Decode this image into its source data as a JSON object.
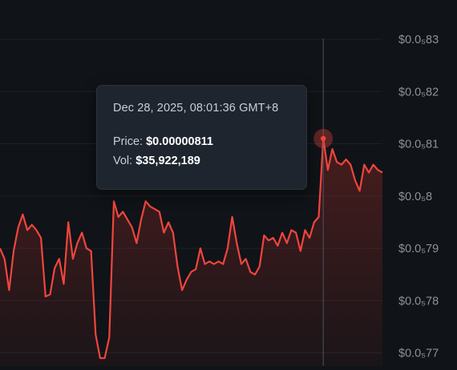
{
  "theme": {
    "background": "#101317",
    "line": "#f0453d",
    "gridline": "#1c2229",
    "axis_text": "#8a929c",
    "tooltip_bg": "#1f252e"
  },
  "chart_data": {
    "type": "area",
    "series": [
      {
        "x_index": [
          0,
          1,
          2,
          3,
          4,
          5,
          6,
          7,
          8,
          9,
          10,
          11,
          12,
          13,
          14,
          15,
          16,
          17,
          18,
          19,
          20,
          21,
          22,
          23,
          24,
          25,
          26,
          27,
          28,
          29,
          30,
          31,
          32,
          33,
          34,
          35,
          36,
          37,
          38,
          39,
          40,
          41,
          42,
          43,
          44,
          45,
          46,
          47,
          48,
          49,
          50,
          51,
          52,
          53,
          54,
          55,
          56,
          57,
          58,
          59,
          60,
          61,
          62,
          63,
          64,
          65,
          66,
          67,
          68,
          69,
          70,
          71,
          72,
          73,
          74,
          75,
          76,
          77,
          78,
          79,
          80,
          81,
          82,
          83,
          84
        ],
        "values_e8": [
          7.9,
          7.88,
          7.82,
          7.895,
          7.94,
          7.965,
          7.935,
          7.945,
          7.935,
          7.92,
          7.808,
          7.812,
          7.862,
          7.88,
          7.832,
          7.95,
          7.88,
          7.91,
          7.93,
          7.9,
          7.895,
          7.735,
          7.69,
          7.69,
          7.73,
          7.99,
          7.96,
          7.97,
          7.955,
          7.94,
          7.91,
          7.955,
          7.99,
          7.98,
          7.975,
          7.97,
          7.93,
          7.95,
          7.93,
          7.865,
          7.82,
          7.84,
          7.855,
          7.86,
          7.9,
          7.87,
          7.875,
          7.87,
          7.875,
          7.87,
          7.9,
          7.96,
          7.91,
          7.87,
          7.88,
          7.855,
          7.85,
          7.865,
          7.925,
          7.915,
          7.92,
          7.905,
          7.93,
          7.91,
          7.935,
          7.93,
          7.895,
          7.935,
          7.92,
          7.95,
          7.96,
          8.11,
          8.05,
          8.09,
          8.065,
          8.06,
          8.07,
          8.06,
          8.03,
          8.01,
          8.06,
          8.045,
          8.06,
          8.05,
          8.045
        ]
      }
    ],
    "y_ticks": [
      "$0.0₅83",
      "$0.0₅82",
      "$0.0₅81",
      "$0.0₅8",
      "$0.0₅79",
      "$0.0₅78",
      "$0.0₅77"
    ],
    "y_tick_values_e8": [
      8.3,
      8.2,
      8.1,
      8.0,
      7.9,
      7.8,
      7.7
    ],
    "ylim_e8": [
      7.675,
      8.375
    ],
    "highlight_index": 71,
    "grid": true
  },
  "tooltip": {
    "date": "Dec 28, 2025, 08:01:36 GMT+8",
    "price_label": "Price:",
    "price_value": "$0.00000811",
    "vol_label": "Vol:",
    "vol_value": "$35,922,189"
  }
}
